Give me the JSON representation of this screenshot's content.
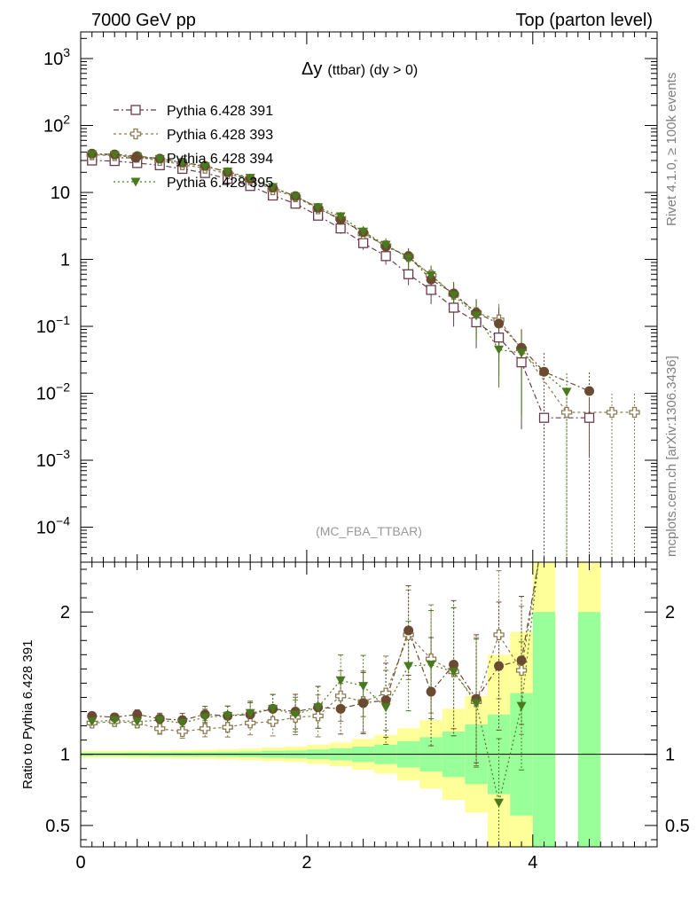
{
  "header": {
    "left": "7000 GeV pp",
    "right": "Top (parton level)"
  },
  "side_labels": {
    "rivet": "Rivet 4.1.0, ≥ 100k events",
    "mcplots": "mcplots.cern.ch [arXiv:1306.3436]"
  },
  "chart_data": {
    "type": "scatter",
    "title": "Δy",
    "title_suffix": "(ttbar) (dy > 0)",
    "watermark": "(MC_FBA_TTBAR)",
    "xlabel": "",
    "ylabel_ratio": "Ratio to Pythia 6.428 391",
    "xlim": [
      0,
      5.1
    ],
    "ylim_log": [
      3e-05,
      2500
    ],
    "ratio_ylim": [
      0.35,
      2.35
    ],
    "x_ticks": [
      0,
      2,
      4
    ],
    "x_tick_labels": [
      "0",
      "2",
      "4"
    ],
    "y_ticks_log": [
      0.0001,
      0.001,
      0.01,
      0.1,
      1,
      10,
      100,
      1000
    ],
    "y_tick_labels": [
      {
        "base": "10",
        "exp": "−4"
      },
      {
        "base": "10",
        "exp": "−3"
      },
      {
        "base": "10",
        "exp": "−2"
      },
      {
        "base": "10",
        "exp": "−1"
      },
      {
        "base": "1",
        "exp": ""
      },
      {
        "base": "10",
        "exp": ""
      },
      {
        "base": "10",
        "exp": "2"
      },
      {
        "base": "10",
        "exp": "3"
      }
    ],
    "ratio_ticks": [
      0.5,
      1,
      2
    ],
    "ratio_tick_labels": [
      "0.5",
      "1",
      "2"
    ],
    "x": [
      0.1,
      0.3,
      0.5,
      0.7,
      0.9,
      1.1,
      1.3,
      1.5,
      1.7,
      1.9,
      2.1,
      2.3,
      2.5,
      2.7,
      2.9,
      3.1,
      3.3,
      3.5,
      3.7,
      3.9,
      4.1,
      4.3,
      4.5,
      4.7,
      4.9
    ],
    "series": [
      {
        "name": "Pythia 6.428 391",
        "color": "#6b3a4f",
        "marker": "square-open",
        "dash": "6,3,2,3",
        "values": [
          30,
          29.5,
          27.5,
          25.5,
          22.5,
          19.5,
          16,
          12.5,
          9,
          6.8,
          4.5,
          2.9,
          1.75,
          1.12,
          0.6,
          0.35,
          0.19,
          0.115,
          0.068,
          0.029,
          0.0043,
          null,
          0.0043,
          null,
          null
        ]
      },
      {
        "name": "Pythia 6.428 393",
        "color": "#8b7a50",
        "marker": "plus-open",
        "dash": "3,3",
        "values": [
          36.5,
          35.5,
          33.5,
          30,
          26,
          23,
          19,
          15.5,
          11,
          8.6,
          5.7,
          4.1,
          2.4,
          1.6,
          1.1,
          0.58,
          0.3,
          0.16,
          0.125,
          0.046,
          null,
          0.0052,
          null,
          0.0052,
          0.0052
        ]
      },
      {
        "name": "Pythia 6.428 394",
        "color": "#6b4a32",
        "marker": "circle",
        "dash": "6,3,2,3",
        "values": [
          38,
          37,
          35,
          32,
          28,
          25,
          20,
          16,
          11.8,
          8.8,
          5.9,
          3.9,
          2.55,
          1.55,
          1.12,
          0.5,
          0.31,
          0.16,
          0.11,
          0.048,
          0.021,
          null,
          0.0108,
          null,
          null
        ]
      },
      {
        "name": "Pythia 6.428 395",
        "color": "#4a7a1e",
        "marker": "triangle-down",
        "dash": "2,3",
        "values": [
          37,
          36,
          34,
          31.5,
          27.5,
          24.5,
          20.5,
          16.5,
          12,
          8.7,
          6,
          4.4,
          2.6,
          1.65,
          1.05,
          0.58,
          0.29,
          0.145,
          0.045,
          0.04,
          null,
          0.0105,
          null,
          null,
          null
        ]
      }
    ],
    "ratio_series": [
      {
        "name": "Pythia 6.428 393",
        "values": [
          1.22,
          1.23,
          1.22,
          1.18,
          1.16,
          1.18,
          1.19,
          1.22,
          1.23,
          1.26,
          1.27,
          1.41,
          1.37,
          1.43,
          1.84,
          1.67,
          1.58,
          1.37,
          1.84,
          1.59,
          null,
          null,
          null,
          null,
          null
        ]
      },
      {
        "name": "Pythia 6.428 394",
        "values": [
          1.27,
          1.26,
          1.28,
          1.25,
          1.24,
          1.28,
          1.27,
          1.28,
          1.32,
          1.3,
          1.33,
          1.32,
          1.36,
          1.38,
          1.87,
          1.44,
          1.63,
          1.39,
          1.62,
          1.66,
          null,
          null,
          null,
          null,
          null
        ]
      },
      {
        "name": "Pythia 6.428 395",
        "values": [
          1.23,
          1.24,
          1.23,
          1.24,
          1.22,
          1.26,
          1.27,
          1.29,
          1.32,
          1.28,
          1.33,
          1.52,
          1.48,
          1.33,
          1.62,
          1.63,
          1.58,
          1.36,
          0.66,
          1.34,
          null,
          null,
          null,
          null,
          null
        ]
      }
    ],
    "ratio_bands": [
      {
        "x0": 0.0,
        "x1": 0.2,
        "g": 0.012,
        "y": 0.024
      },
      {
        "x0": 0.2,
        "x1": 0.4,
        "g": 0.012,
        "y": 0.024
      },
      {
        "x0": 0.4,
        "x1": 0.6,
        "g": 0.013,
        "y": 0.026
      },
      {
        "x0": 0.6,
        "x1": 0.8,
        "g": 0.014,
        "y": 0.027
      },
      {
        "x0": 0.8,
        "x1": 1.0,
        "g": 0.015,
        "y": 0.03
      },
      {
        "x0": 1.0,
        "x1": 1.2,
        "g": 0.016,
        "y": 0.032
      },
      {
        "x0": 1.2,
        "x1": 1.4,
        "g": 0.018,
        "y": 0.036
      },
      {
        "x0": 1.4,
        "x1": 1.6,
        "g": 0.02,
        "y": 0.04
      },
      {
        "x0": 1.6,
        "x1": 1.8,
        "g": 0.024,
        "y": 0.048
      },
      {
        "x0": 1.8,
        "x1": 2.0,
        "g": 0.027,
        "y": 0.055
      },
      {
        "x0": 2.0,
        "x1": 2.2,
        "g": 0.034,
        "y": 0.068
      },
      {
        "x0": 2.2,
        "x1": 2.4,
        "g": 0.042,
        "y": 0.084
      },
      {
        "x0": 2.4,
        "x1": 2.6,
        "g": 0.054,
        "y": 0.108
      },
      {
        "x0": 2.6,
        "x1": 2.8,
        "g": 0.068,
        "y": 0.136
      },
      {
        "x0": 2.8,
        "x1": 3.0,
        "g": 0.092,
        "y": 0.184
      },
      {
        "x0": 3.0,
        "x1": 3.2,
        "g": 0.12,
        "y": 0.24
      },
      {
        "x0": 3.2,
        "x1": 3.4,
        "g": 0.16,
        "y": 0.32
      },
      {
        "x0": 3.4,
        "x1": 3.6,
        "g": 0.21,
        "y": 0.41
      },
      {
        "x0": 3.6,
        "x1": 3.8,
        "g": 0.28,
        "y": 0.7
      },
      {
        "x0": 3.8,
        "x1": 4.0,
        "g": 0.43,
        "y": 0.86
      },
      {
        "x0": 4.0,
        "x1": 4.2,
        "g": 1.0,
        "y": 3.0
      },
      {
        "x0": 4.4,
        "x1": 4.6,
        "g": 1.0,
        "y": 3.0
      }
    ]
  }
}
